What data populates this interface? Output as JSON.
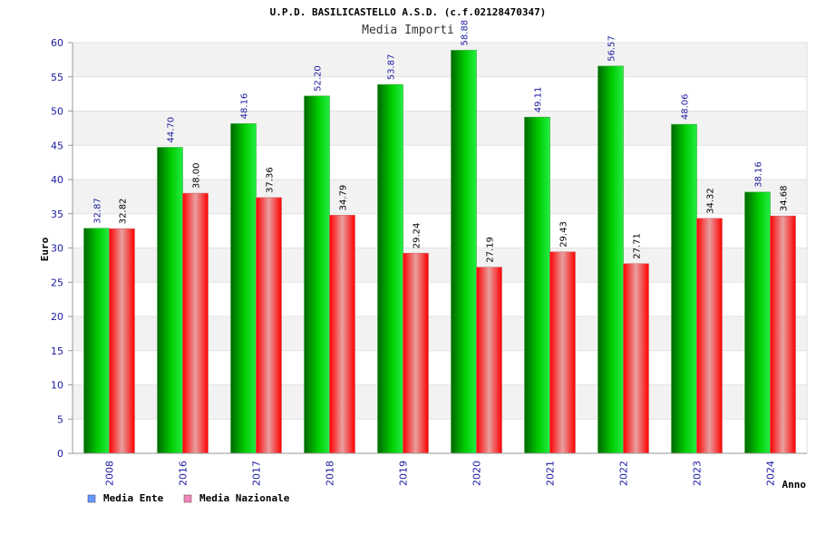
{
  "chart_data": {
    "type": "bar",
    "title": "U.P.D. BASILICASTELLO A.S.D. (c.f.02128470347)",
    "subtitle": "Media Importi",
    "xlabel": "Anno",
    "ylabel": "Euro",
    "ylim": [
      0,
      60
    ],
    "yticks": [
      "0",
      "5",
      "10",
      "15",
      "20",
      "25",
      "30",
      "35",
      "40",
      "45",
      "50",
      "55",
      "60"
    ],
    "categories": [
      "2008",
      "2016",
      "2017",
      "2018",
      "2019",
      "2020",
      "2021",
      "2022",
      "2023",
      "2024"
    ],
    "series": [
      {
        "name": "Media Ente",
        "values": [
          32.87,
          44.7,
          48.16,
          52.2,
          53.87,
          58.88,
          49.11,
          56.57,
          48.06,
          38.16
        ],
        "labels": [
          "32.87",
          "44.70",
          "48.16",
          "52.20",
          "53.87",
          "58.88",
          "49.11",
          "56.57",
          "48.06",
          "38.16"
        ],
        "color": "#00cc00",
        "legend_color": "#6699ff"
      },
      {
        "name": "Media Nazionale",
        "values": [
          32.82,
          38.0,
          37.36,
          34.79,
          29.24,
          27.19,
          29.43,
          27.71,
          34.32,
          34.68
        ],
        "labels": [
          "32.82",
          "38.00",
          "37.36",
          "34.79",
          "29.24",
          "27.19",
          "29.43",
          "27.71",
          "34.32",
          "34.68"
        ],
        "color": "#ff0000",
        "legend_color": "#ee88bb"
      }
    ],
    "grid": true,
    "legend_position": "bottom-left"
  }
}
